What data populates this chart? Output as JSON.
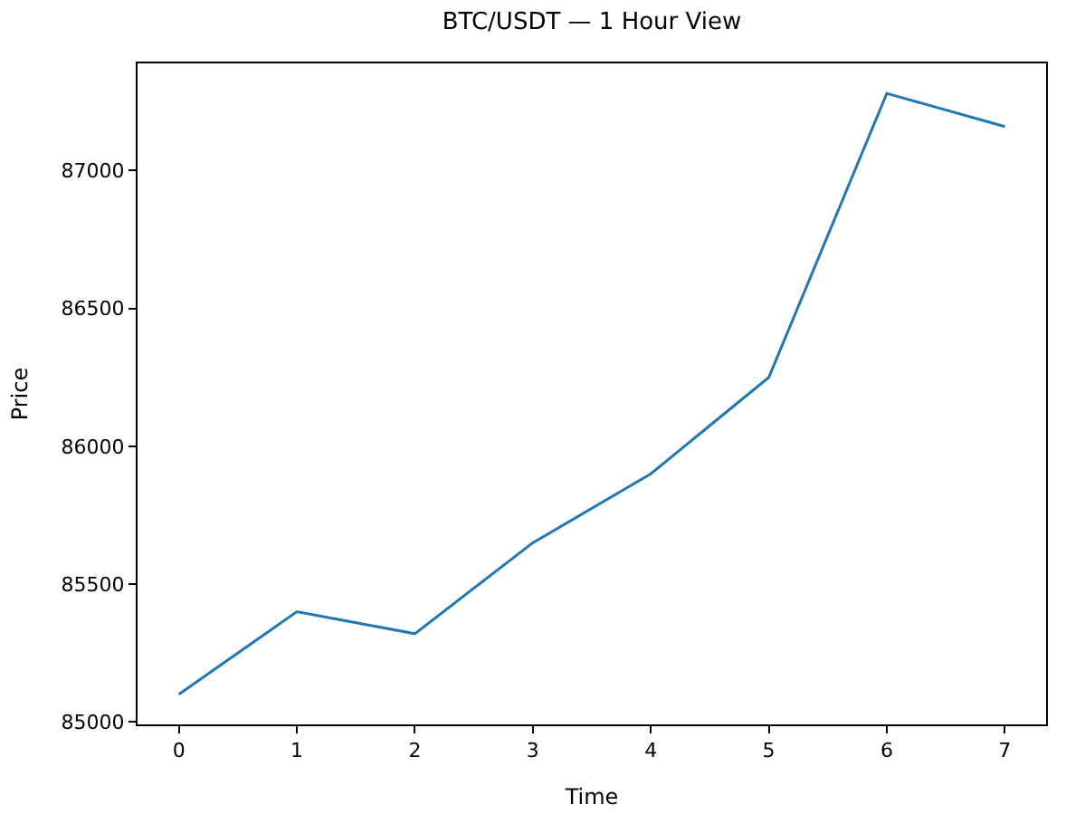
{
  "chart_data": {
    "type": "line",
    "title": "BTC/USDT — 1 Hour View",
    "xlabel": "Time",
    "ylabel": "Price",
    "x": [
      0,
      1,
      2,
      3,
      4,
      5,
      6,
      7
    ],
    "series": [
      {
        "color": "#1f77b4",
        "values": [
          85100,
          85400,
          85320,
          85650,
          85900,
          86250,
          87280,
          87160
        ]
      }
    ],
    "xlim": [
      -0.35,
      7.35
    ],
    "xticks": [
      0,
      1,
      2,
      3,
      4,
      5,
      6,
      7
    ],
    "ylim": [
      84991,
      87389
    ],
    "yticks": [
      85000,
      85500,
      86000,
      86500,
      87000
    ],
    "marker": "none",
    "line_style": "solid"
  }
}
